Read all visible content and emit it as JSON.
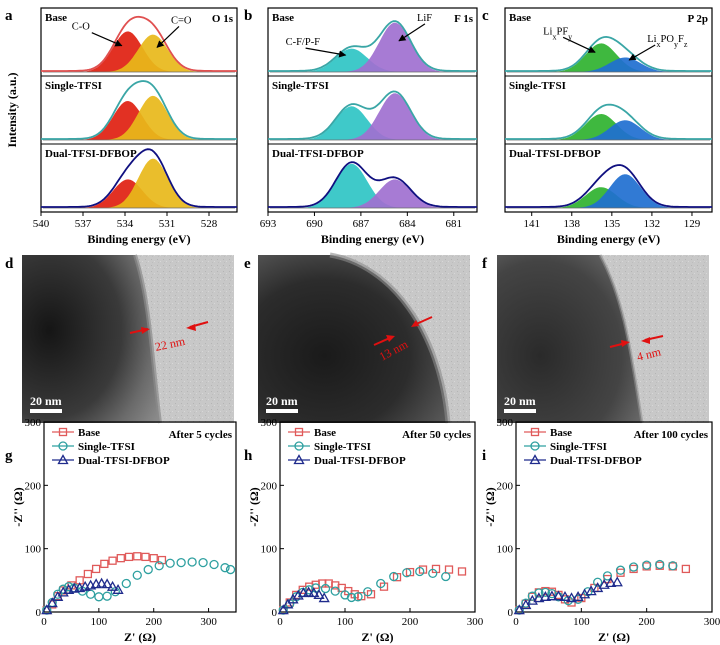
{
  "colors": {
    "red": "#e02010",
    "yellow": "#e8b81a",
    "cyan": "#2fc4c4",
    "purple": "#a070d0",
    "green": "#2fb22f",
    "blue": "#1f6fd0",
    "env_red": "#e05050",
    "env_teal": "#3aa6a6",
    "env_navy": "#101080",
    "eis_base": "#e05a5a",
    "eis_single": "#2ea0a0",
    "eis_dual": "#1f2b8c"
  },
  "tem": {
    "scale_label": "20 nm",
    "panels": [
      {
        "letter": "d",
        "thickness": "22 nm"
      },
      {
        "letter": "e",
        "thickness": "13 nm"
      },
      {
        "letter": "f",
        "thickness": "4 nm"
      }
    ]
  },
  "chart_data": [
    {
      "type": "area",
      "panel": "a",
      "title": "O 1s",
      "xlabel": "Binding energy (eV)",
      "ylabel": "Intensity (a.u.)",
      "xticks": [
        "540",
        "537",
        "534",
        "531",
        "528"
      ],
      "xlim": [
        540,
        526
      ],
      "rows": [
        "Base",
        "Single-TFSI",
        "Dual-TFSI-DFBOP"
      ],
      "peak_names": [
        "C-O",
        "C=O"
      ],
      "peak_centers": [
        533.8,
        532.0
      ],
      "peak_heights": [
        [
          0.78,
          0.72
        ],
        [
          0.75,
          0.85
        ],
        [
          0.55,
          0.95
        ]
      ]
    },
    {
      "type": "area",
      "panel": "b",
      "title": "F 1s",
      "xlabel": "Binding energy (eV)",
      "ylabel": "",
      "xticks": [
        "693",
        "690",
        "687",
        "684",
        "681"
      ],
      "xlim": [
        693,
        679.5
      ],
      "rows": [
        "Base",
        "Single-TFSI",
        "Dual-TFSI-DFBOP"
      ],
      "peak_names": [
        "C-F/P-F",
        "LiF"
      ],
      "peak_centers": [
        687.6,
        684.8
      ],
      "peak_heights": [
        [
          0.45,
          0.95
        ],
        [
          0.65,
          0.9
        ],
        [
          0.85,
          0.55
        ]
      ]
    },
    {
      "type": "area",
      "panel": "c",
      "title": "P 2p",
      "xlabel": "Binding energy (eV)",
      "ylabel": "",
      "xticks": [
        "141",
        "138",
        "135",
        "132",
        "129"
      ],
      "xlim": [
        143,
        127.5
      ],
      "rows": [
        "Base",
        "Single-TFSI",
        "Dual-TFSI-DFBOP"
      ],
      "peak_names": [
        "LixPFy",
        "LixPOyFz"
      ],
      "peak_centers": [
        135.8,
        134.0
      ],
      "peak_heights": [
        [
          0.55,
          0.28
        ],
        [
          0.5,
          0.38
        ],
        [
          0.4,
          0.65
        ]
      ]
    },
    {
      "type": "scatter",
      "panel": "g",
      "annotation": "After 5 cycles",
      "xlabel": "Z' (Ω)",
      "ylabel": "-Z'' (Ω)",
      "xlim": [
        0,
        350
      ],
      "ylim": [
        0,
        300
      ],
      "xticks": [
        "0",
        "100",
        "200",
        "300"
      ],
      "yticks": [
        "0",
        "100",
        "200",
        "300"
      ],
      "series": [
        {
          "name": "Base",
          "x": [
            5,
            15,
            25,
            35,
            50,
            65,
            80,
            95,
            110,
            125,
            140,
            155,
            170,
            185,
            200,
            215
          ],
          "y": [
            3,
            12,
            25,
            34,
            42,
            50,
            60,
            68,
            76,
            81,
            85,
            87,
            88,
            87,
            85,
            82
          ]
        },
        {
          "name": "Single-TFSI",
          "x": [
            5,
            15,
            25,
            35,
            45,
            55,
            70,
            85,
            100,
            115,
            130,
            150,
            170,
            190,
            210,
            230,
            250,
            270,
            290,
            310,
            330,
            340
          ],
          "y": [
            3,
            15,
            28,
            36,
            40,
            38,
            33,
            28,
            24,
            25,
            32,
            45,
            58,
            67,
            73,
            77,
            78,
            79,
            78,
            75,
            70,
            67
          ]
        },
        {
          "name": "Dual-TFSI-DFBOP",
          "x": [
            5,
            15,
            25,
            35,
            45,
            55,
            65,
            75,
            85,
            95,
            105,
            115,
            125,
            135
          ],
          "y": [
            3,
            14,
            24,
            31,
            35,
            37,
            38,
            40,
            42,
            44,
            45,
            44,
            40,
            35
          ]
        }
      ]
    },
    {
      "type": "scatter",
      "panel": "h",
      "annotation": "After 50 cycles",
      "xlabel": "Z' (Ω)",
      "ylabel": "-Z'' (Ω)",
      "xlim": [
        0,
        300
      ],
      "ylim": [
        0,
        300
      ],
      "xticks": [
        "0",
        "100",
        "200",
        "300"
      ],
      "yticks": [
        "0",
        "100",
        "200",
        "300"
      ],
      "series": [
        {
          "name": "Base",
          "x": [
            5,
            15,
            25,
            35,
            45,
            55,
            65,
            75,
            85,
            95,
            105,
            115,
            125,
            140,
            160,
            180,
            200,
            220,
            240,
            260,
            280
          ],
          "y": [
            3,
            15,
            27,
            35,
            40,
            43,
            45,
            45,
            42,
            38,
            33,
            28,
            25,
            28,
            40,
            55,
            63,
            67,
            68,
            67,
            64
          ]
        },
        {
          "name": "Single-TFSI",
          "x": [
            5,
            15,
            25,
            35,
            45,
            55,
            70,
            85,
            100,
            110,
            120,
            135,
            155,
            175,
            195,
            215,
            235,
            255
          ],
          "y": [
            3,
            13,
            24,
            31,
            35,
            38,
            37,
            33,
            27,
            23,
            24,
            32,
            45,
            56,
            62,
            64,
            61,
            56
          ]
        },
        {
          "name": "Dual-TFSI-DFBOP",
          "x": [
            5,
            12,
            20,
            28,
            36,
            44,
            52,
            60,
            68
          ],
          "y": [
            3,
            12,
            20,
            26,
            30,
            31,
            30,
            27,
            22
          ]
        }
      ]
    },
    {
      "type": "scatter",
      "panel": "i",
      "annotation": "After 100 cycles",
      "xlabel": "Z' (Ω)",
      "ylabel": "-Z'' (Ω)",
      "xlim": [
        0,
        300
      ],
      "ylim": [
        0,
        300
      ],
      "xticks": [
        "0",
        "100",
        "200",
        "300"
      ],
      "yticks": [
        "0",
        "100",
        "200",
        "300"
      ],
      "series": [
        {
          "name": "Base",
          "x": [
            5,
            15,
            25,
            35,
            45,
            55,
            65,
            75,
            85,
            100,
            120,
            140,
            160,
            180,
            200,
            220,
            240,
            260
          ],
          "y": [
            3,
            13,
            24,
            31,
            33,
            32,
            27,
            20,
            15,
            22,
            38,
            52,
            62,
            68,
            72,
            73,
            72,
            68
          ]
        },
        {
          "name": "Single-TFSI",
          "x": [
            5,
            15,
            25,
            35,
            45,
            55,
            65,
            80,
            95,
            110,
            125,
            140,
            160,
            180,
            200,
            220,
            240
          ],
          "y": [
            3,
            14,
            25,
            30,
            31,
            29,
            24,
            18,
            20,
            32,
            47,
            57,
            66,
            71,
            74,
            75,
            73
          ]
        },
        {
          "name": "Dual-TFSI-DFBOP",
          "x": [
            5,
            15,
            25,
            35,
            45,
            55,
            65,
            75,
            85,
            95,
            105,
            115,
            125,
            135,
            145,
            155
          ],
          "y": [
            3,
            11,
            18,
            22,
            24,
            25,
            25,
            24,
            22,
            24,
            28,
            33,
            38,
            43,
            46,
            47
          ]
        }
      ]
    }
  ]
}
